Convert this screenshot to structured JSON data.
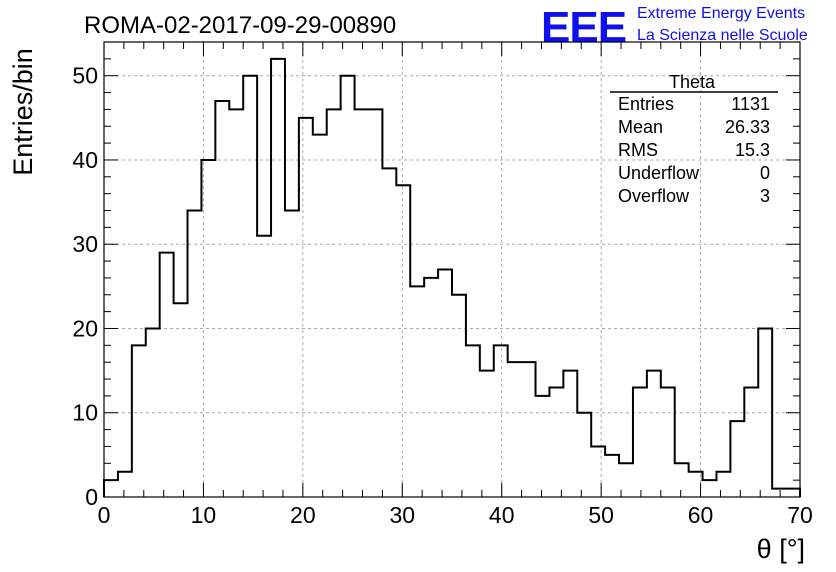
{
  "header": {
    "run_title": "ROMA-02-2017-09-29-00890",
    "logo": "EEE",
    "logo_line1": "Extreme Energy Events",
    "logo_line2": "La Scienza nelle Scuole",
    "logo_color": "#1010ee"
  },
  "stats": {
    "title": "Theta",
    "rows": [
      {
        "label": "Entries",
        "value": "1131"
      },
      {
        "label": "Mean",
        "value": "26.33"
      },
      {
        "label": "RMS",
        "value": "15.3"
      },
      {
        "label": "Underflow",
        "value": "0"
      },
      {
        "label": "Overflow",
        "value": "3"
      }
    ]
  },
  "chart_data": {
    "type": "bar",
    "style": "step-histogram",
    "xlabel": "θ [°]",
    "ylabel": "Entries/bin",
    "xlim": [
      0,
      70
    ],
    "ylim": [
      0,
      54
    ],
    "bin_width": 1.4,
    "x_ticks": [
      0,
      10,
      20,
      30,
      40,
      50,
      60,
      70
    ],
    "x_tick_labels": [
      "0",
      "10",
      "20",
      "30",
      "40",
      "50",
      "60",
      "70"
    ],
    "y_ticks": [
      0,
      10,
      20,
      30,
      40,
      50
    ],
    "y_tick_labels": [
      "0",
      "10",
      "20",
      "30",
      "40",
      "50"
    ],
    "grid": true,
    "values": [
      2,
      3,
      18,
      20,
      29,
      23,
      34,
      40,
      47,
      46,
      50,
      31,
      52,
      34,
      45,
      43,
      46,
      50,
      46,
      46,
      39,
      37,
      25,
      26,
      27,
      24,
      18,
      15,
      18,
      16,
      16,
      12,
      13,
      15,
      10,
      6,
      5,
      4,
      13,
      15,
      13,
      4,
      3,
      2,
      3,
      9,
      13,
      20,
      1,
      1
    ],
    "line_color": "#000000"
  }
}
